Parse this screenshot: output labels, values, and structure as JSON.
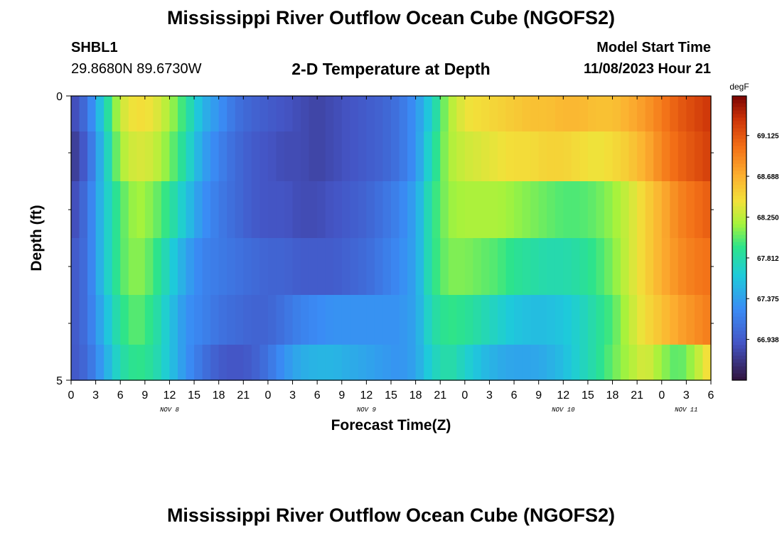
{
  "header": {
    "title": "Mississippi River Outflow Ocean Cube (NGOFS2)",
    "station_id": "SHBL1",
    "station_coords": "29.8680N  89.6730W",
    "subtitle": "2-D Temperature at Depth",
    "model_start_label": "Model Start Time",
    "model_start_value": "11/08/2023 Hour 21",
    "bottom_title": "Mississippi River Outflow Ocean Cube (NGOFS2)"
  },
  "chart_data": {
    "type": "heatmap",
    "title": "2-D Temperature at Depth",
    "xlabel": "Forecast Time(Z)",
    "ylabel": "Depth (ft)",
    "x_ticks": [
      "0",
      "3",
      "6",
      "9",
      "12",
      "15",
      "18",
      "21",
      "0",
      "3",
      "6",
      "9",
      "12",
      "15",
      "18",
      "21",
      "0",
      "3",
      "6",
      "9",
      "12",
      "15",
      "18",
      "21",
      "0",
      "3",
      "6"
    ],
    "x_range_hours": [
      0,
      78
    ],
    "day_labels": [
      {
        "label": "NOV 8",
        "hour": 12
      },
      {
        "label": "NOV 9",
        "hour": 36
      },
      {
        "label": "NOV 10",
        "hour": 60
      },
      {
        "label": "NOV 11",
        "hour": 75
      }
    ],
    "y_ticks": [
      "0",
      "5"
    ],
    "y_range_ft": [
      0,
      5
    ],
    "depth_levels_ft": [
      0.25,
      1.0,
      2.0,
      3.0,
      4.0,
      4.75
    ],
    "time_hours": [
      0,
      2,
      4,
      6,
      8,
      10,
      12,
      14,
      16,
      18,
      20,
      22,
      24,
      26,
      28,
      30,
      32,
      34,
      36,
      38,
      40,
      42,
      44,
      46,
      48,
      50,
      52,
      54,
      56,
      58,
      60,
      62,
      64,
      66,
      68,
      70,
      72,
      74,
      76,
      78
    ],
    "temperature_degF": [
      [
        66.8,
        67.1,
        67.7,
        68.3,
        68.45,
        68.4,
        68.2,
        67.9,
        67.5,
        67.3,
        67.1,
        67.0,
        66.95,
        66.9,
        66.85,
        66.8,
        66.85,
        66.9,
        66.95,
        67.0,
        67.1,
        67.3,
        67.7,
        68.2,
        68.4,
        68.45,
        68.5,
        68.55,
        68.6,
        68.6,
        68.65,
        68.65,
        68.6,
        68.6,
        68.7,
        68.8,
        68.95,
        69.1,
        69.2,
        69.3
      ],
      [
        66.7,
        67.0,
        67.6,
        68.2,
        68.35,
        68.3,
        68.1,
        67.8,
        67.4,
        67.2,
        67.05,
        66.95,
        66.9,
        66.85,
        66.85,
        66.8,
        66.85,
        66.9,
        66.95,
        67.0,
        67.1,
        67.3,
        67.8,
        68.2,
        68.3,
        68.35,
        68.4,
        68.45,
        68.45,
        68.5,
        68.5,
        68.45,
        68.4,
        68.45,
        68.55,
        68.7,
        68.9,
        69.05,
        69.15,
        69.25
      ],
      [
        66.8,
        67.1,
        67.6,
        68.0,
        68.2,
        68.1,
        67.9,
        67.6,
        67.3,
        67.15,
        67.05,
        66.95,
        66.9,
        66.9,
        66.85,
        66.85,
        66.9,
        66.95,
        67.0,
        67.1,
        67.2,
        67.4,
        67.9,
        68.15,
        68.2,
        68.2,
        68.2,
        68.15,
        68.1,
        68.05,
        68.0,
        68.0,
        68.05,
        68.15,
        68.3,
        68.5,
        68.7,
        68.9,
        69.0,
        69.1
      ],
      [
        66.9,
        67.1,
        67.6,
        68.0,
        68.15,
        68.0,
        67.7,
        67.4,
        67.2,
        67.15,
        67.1,
        67.05,
        67.0,
        67.0,
        66.95,
        66.95,
        66.95,
        67.0,
        67.05,
        67.15,
        67.25,
        67.4,
        67.9,
        68.1,
        68.1,
        68.05,
        68.0,
        67.9,
        67.85,
        67.8,
        67.8,
        67.85,
        67.95,
        68.1,
        68.3,
        68.5,
        68.7,
        68.85,
        68.95,
        69.0
      ],
      [
        66.9,
        67.1,
        67.5,
        67.9,
        68.05,
        67.9,
        67.6,
        67.3,
        67.2,
        67.1,
        67.05,
        67.0,
        67.0,
        67.1,
        67.2,
        67.25,
        67.3,
        67.3,
        67.3,
        67.3,
        67.3,
        67.4,
        67.8,
        67.95,
        67.9,
        67.8,
        67.7,
        67.6,
        67.55,
        67.55,
        67.6,
        67.7,
        67.85,
        68.0,
        68.25,
        68.45,
        68.6,
        68.75,
        68.85,
        68.95
      ],
      [
        66.9,
        67.05,
        67.4,
        67.8,
        67.95,
        67.85,
        67.6,
        67.3,
        67.1,
        66.95,
        66.9,
        66.95,
        67.1,
        67.3,
        67.45,
        67.5,
        67.5,
        67.45,
        67.4,
        67.35,
        67.3,
        67.4,
        67.7,
        67.85,
        67.7,
        67.55,
        67.45,
        67.4,
        67.4,
        67.45,
        67.55,
        67.7,
        67.85,
        68.05,
        68.2,
        68.35,
        68.15,
        68.0,
        68.2,
        68.5
      ]
    ],
    "colorbar": {
      "label": "degF",
      "ticks": [
        "69.125",
        "68.688",
        "68.250",
        "67.812",
        "67.375",
        "66.938"
      ],
      "min": 66.5,
      "max": 69.55
    },
    "grid": false
  }
}
